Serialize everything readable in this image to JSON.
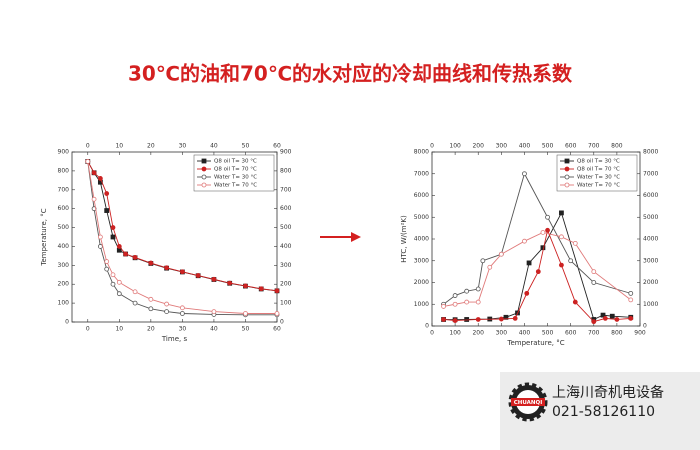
{
  "title": "30℃的油和70℃的水对应的冷却曲线和传热系数",
  "chart_data": [
    {
      "type": "line",
      "x_label": "Time, s",
      "y_label": "Temperature, °C",
      "xlim": [
        -5,
        60
      ],
      "xticks": [
        0,
        10,
        20,
        30,
        40,
        50,
        60
      ],
      "x2ticks": [
        0,
        10,
        20,
        30,
        40,
        50,
        60
      ],
      "ylim": [
        0,
        900
      ],
      "yticks": [
        0,
        100,
        200,
        300,
        400,
        500,
        600,
        700,
        800,
        900
      ],
      "y2lim": [
        0,
        900
      ],
      "y2ticks": [
        0,
        100,
        200,
        300,
        400,
        500,
        600,
        700,
        800,
        900
      ],
      "legend": "upper right",
      "series": [
        {
          "name": "Q8 oil T= 30 °C",
          "color": "#222222",
          "marker": "square",
          "filled": true,
          "x": [
            0,
            2,
            4,
            6,
            8,
            10,
            12,
            15,
            20,
            25,
            30,
            35,
            40,
            45,
            50,
            55,
            60
          ],
          "values": [
            850,
            790,
            740,
            590,
            450,
            380,
            360,
            340,
            310,
            285,
            265,
            245,
            225,
            205,
            190,
            175,
            165
          ]
        },
        {
          "name": "Q8 oil T= 70 °C",
          "color": "#cc2222",
          "marker": "circle",
          "filled": true,
          "x": [
            0,
            2,
            4,
            6,
            8,
            10,
            12,
            15,
            20,
            25,
            30,
            35,
            40,
            45,
            50,
            55,
            60
          ],
          "values": [
            850,
            790,
            760,
            680,
            500,
            400,
            360,
            342,
            312,
            287,
            266,
            246,
            226,
            206,
            191,
            176,
            165
          ]
        },
        {
          "name": "Water T= 30 °C",
          "color": "#555555",
          "marker": "circle",
          "filled": false,
          "x": [
            0,
            2,
            4,
            6,
            8,
            10,
            15,
            20,
            25,
            30,
            40,
            50,
            60
          ],
          "values": [
            850,
            600,
            400,
            280,
            200,
            150,
            100,
            70,
            55,
            45,
            40,
            38,
            38
          ]
        },
        {
          "name": "Water T= 70 °C",
          "color": "#e07a7a",
          "marker": "circle",
          "filled": false,
          "x": [
            0,
            2,
            4,
            6,
            8,
            10,
            15,
            20,
            25,
            30,
            40,
            50,
            60
          ],
          "values": [
            850,
            650,
            450,
            320,
            250,
            210,
            160,
            120,
            95,
            75,
            55,
            45,
            45
          ]
        }
      ]
    },
    {
      "type": "line",
      "x_label": "Temperature, °C",
      "y_label": "HTC, W/(m²K)",
      "xlim": [
        0,
        900
      ],
      "xticks": [
        0,
        100,
        200,
        300,
        400,
        500,
        600,
        700,
        800,
        900
      ],
      "x2ticks": [
        0,
        100,
        200,
        300,
        400,
        500,
        600,
        700,
        800
      ],
      "ylim": [
        0,
        8000
      ],
      "yticks": [
        0,
        1000,
        2000,
        3000,
        4000,
        5000,
        6000,
        7000,
        8000
      ],
      "y2lim": [
        0,
        8000
      ],
      "y2ticks": [
        0,
        1000,
        2000,
        3000,
        4000,
        5000,
        6000,
        7000,
        8000
      ],
      "legend": "upper right",
      "series": [
        {
          "name": "Q8 oil T= 30 °C",
          "color": "#222222",
          "marker": "square",
          "filled": true,
          "x": [
            50,
            100,
            150,
            250,
            320,
            370,
            420,
            480,
            560,
            700,
            740,
            780,
            860
          ],
          "values": [
            300,
            290,
            300,
            320,
            400,
            600,
            2900,
            3600,
            5200,
            300,
            500,
            450,
            400
          ]
        },
        {
          "name": "Q8 oil T= 70 °C",
          "color": "#cc2222",
          "marker": "circle",
          "filled": true,
          "x": [
            50,
            100,
            200,
            300,
            360,
            410,
            460,
            500,
            560,
            620,
            700,
            750,
            800,
            860
          ],
          "values": [
            300,
            250,
            300,
            320,
            350,
            1500,
            2500,
            4400,
            2800,
            1100,
            200,
            350,
            300,
            350
          ]
        },
        {
          "name": "Water T= 30 °C",
          "color": "#555555",
          "marker": "circle",
          "filled": false,
          "x": [
            50,
            100,
            150,
            200,
            220,
            300,
            400,
            500,
            600,
            700,
            860
          ],
          "values": [
            1000,
            1400,
            1600,
            1700,
            3000,
            3300,
            7000,
            5000,
            3000,
            2000,
            1500
          ]
        },
        {
          "name": "Water T= 70 °C",
          "color": "#e07a7a",
          "marker": "circle",
          "filled": false,
          "x": [
            50,
            100,
            150,
            200,
            250,
            300,
            400,
            480,
            560,
            620,
            700,
            860
          ],
          "values": [
            900,
            1000,
            1100,
            1100,
            2700,
            3300,
            3900,
            4300,
            4100,
            3800,
            2500,
            1200
          ]
        }
      ]
    }
  ],
  "company": {
    "logo_text": "CHUANQI",
    "name": "上海川奇机电设备",
    "phone": "021-58126110"
  }
}
